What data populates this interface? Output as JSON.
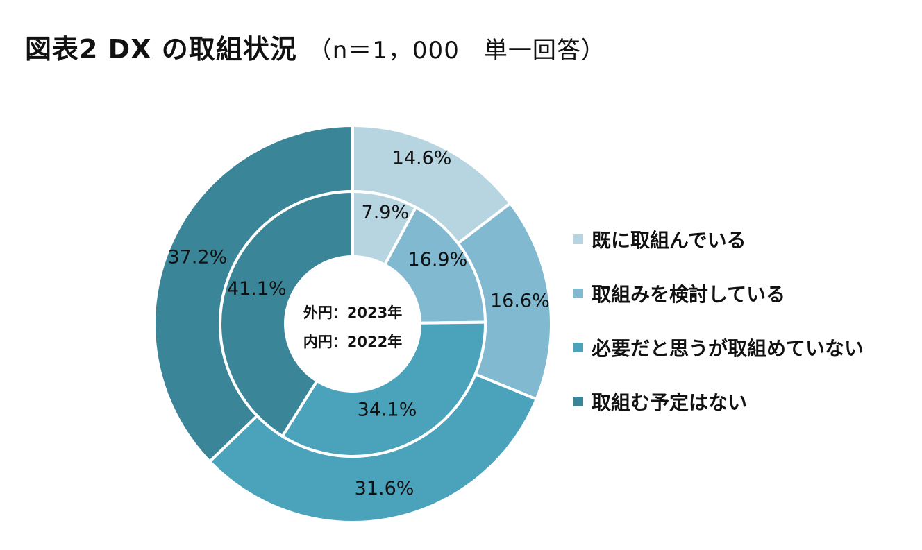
{
  "title": {
    "main": "図表2 DX の取組状況",
    "sub": "（n＝1，000　単一回答）"
  },
  "chart_data": {
    "type": "pie",
    "title": "図表2 DX の取組状況（n＝1，000　単一回答）",
    "categories": [
      "既に取組んでいる",
      "取組みを検討している",
      "必要だと思うが取組めていない",
      "取組む予定はない"
    ],
    "colors": [
      "#b7d5e0",
      "#80b9d0",
      "#4ba3bb",
      "#3b8599"
    ],
    "series": [
      {
        "name": "外円：2023年",
        "values": [
          14.6,
          16.6,
          31.6,
          37.2
        ],
        "labels": [
          "14.6%",
          "16.6%",
          "31.6%",
          "37.2%"
        ]
      },
      {
        "name": "内円：2022年",
        "values": [
          7.9,
          16.9,
          34.1,
          41.1
        ],
        "labels": [
          "7.9%",
          "16.9%",
          "34.1%",
          "41.1%"
        ]
      }
    ],
    "legend_position": "right"
  }
}
